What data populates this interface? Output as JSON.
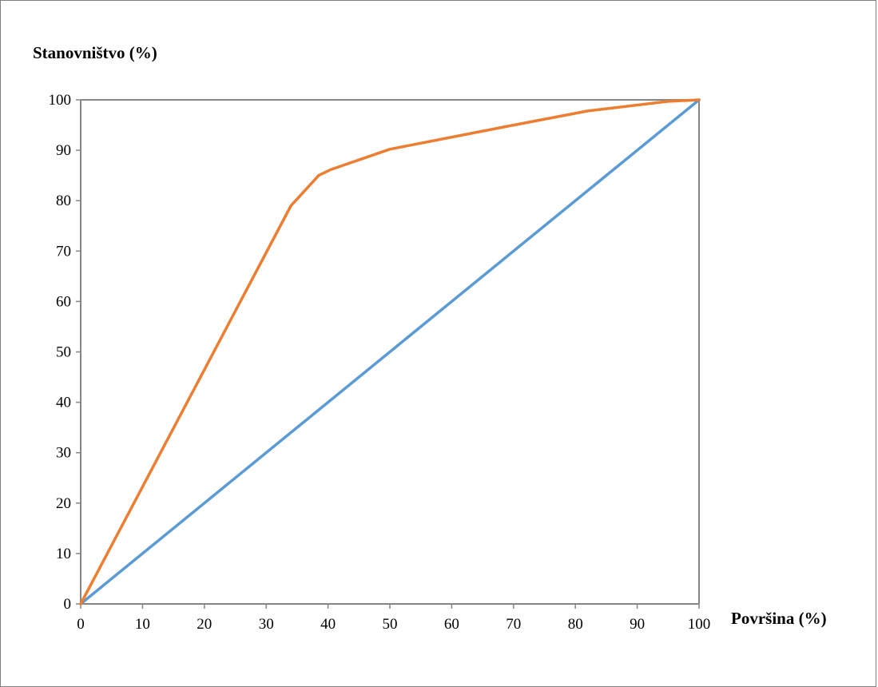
{
  "chart_data": {
    "type": "line",
    "title": "",
    "ylabel": "Stanovništvo (%)",
    "xlabel": "Površina (%)",
    "xlim": [
      0,
      100
    ],
    "ylim": [
      0,
      100
    ],
    "xticks": [
      0,
      10,
      20,
      30,
      40,
      50,
      60,
      70,
      80,
      90,
      100
    ],
    "yticks": [
      0,
      10,
      20,
      30,
      40,
      50,
      60,
      70,
      80,
      90,
      100
    ],
    "grid": false,
    "legend": "none",
    "series": [
      {
        "color": "#5b9bd5",
        "x": [
          0,
          100
        ],
        "y": [
          0,
          100
        ]
      },
      {
        "color": "#ed7d31",
        "x": [
          0,
          34,
          38.5,
          40.5,
          50,
          70,
          82,
          95,
          100
        ],
        "y": [
          0,
          79,
          85,
          86.2,
          90.2,
          95,
          97.8,
          99.7,
          100
        ]
      }
    ]
  }
}
